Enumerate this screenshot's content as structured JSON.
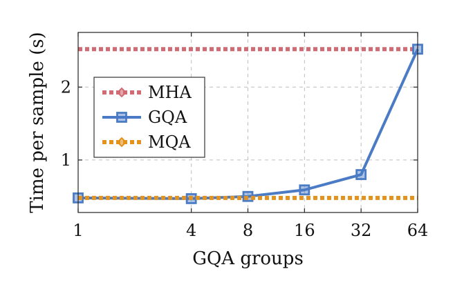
{
  "chart_data": {
    "type": "line",
    "title": "",
    "xlabel": "GQA groups",
    "ylabel": "Time per sample (s)",
    "x_scale": "log2",
    "x": [
      1,
      4,
      8,
      16,
      32,
      64
    ],
    "xticks": [
      "1",
      "4",
      "8",
      "16",
      "32",
      "64"
    ],
    "yticks": [
      1,
      2
    ],
    "ytick_labels": [
      "1",
      "2"
    ],
    "xlim": [
      1,
      64
    ],
    "ylim": [
      0.28,
      2.75
    ],
    "grid": true,
    "legend_position": "center-left",
    "series": [
      {
        "name": "MHA",
        "style": "dotted",
        "marker": "diamond",
        "color": "#d16b73",
        "values": [
          2.52,
          2.52,
          2.52,
          2.52,
          2.52,
          2.52
        ],
        "show_markers": false
      },
      {
        "name": "GQA",
        "style": "solid",
        "marker": "square",
        "color": "#4a7bc4",
        "values": [
          0.48,
          0.47,
          0.5,
          0.59,
          0.8,
          2.52
        ],
        "show_markers": true
      },
      {
        "name": "MQA",
        "style": "dotted",
        "marker": "diamond",
        "color": "#e3921d",
        "values": [
          0.48,
          0.48,
          0.48,
          0.48,
          0.48,
          0.48
        ],
        "show_markers": false
      }
    ]
  }
}
